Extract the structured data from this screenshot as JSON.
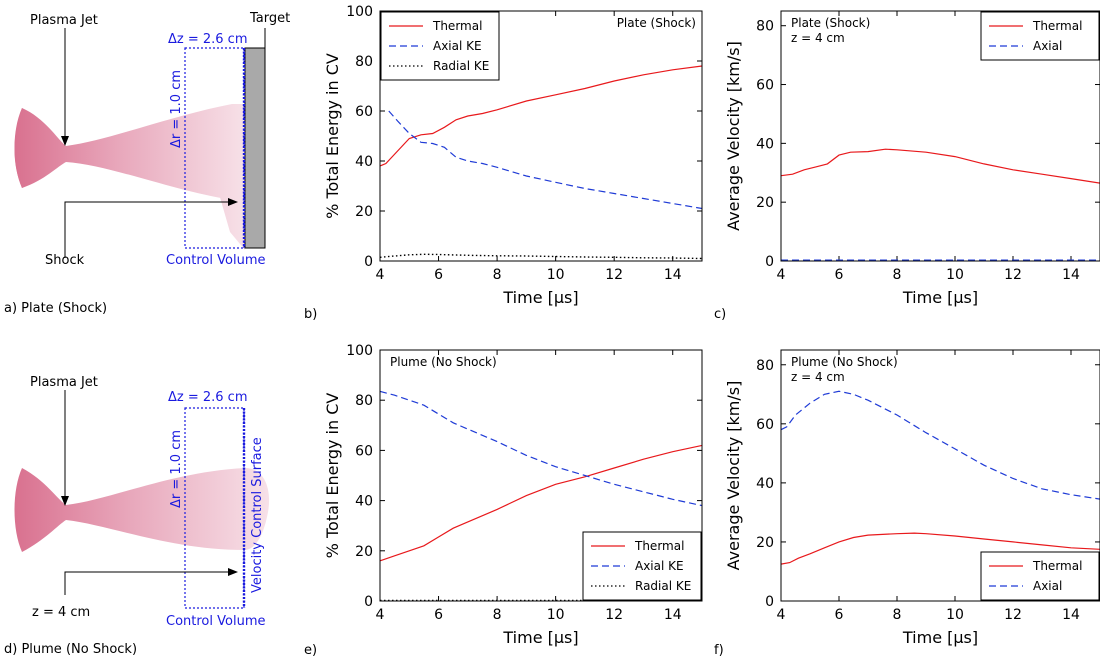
{
  "colors": {
    "thermal": "#e8191c",
    "axial": "#1f3bd6",
    "radial": "#000000",
    "plasma": "#d9718f",
    "cv": "#1a1adf",
    "target": "#a9a9a9"
  },
  "diagram_a": {
    "panel_label": "a) Plate (Shock)",
    "plasma_jet": "Plasma Jet",
    "dz": "Δz = 2.6 cm",
    "dr": "Δr = 1.0 cm",
    "target": "Target",
    "shock": "Shock",
    "control_volume": "Control Volume"
  },
  "diagram_d": {
    "panel_label": "d) Plume (No Shock)",
    "plasma_jet": "Plasma Jet",
    "dz": "Δz = 2.6 cm",
    "dr": "Δr = 1.0 cm",
    "surface": "Velocity Control Surface",
    "z_label": "z = 4 cm",
    "control_volume": "Control Volume"
  },
  "chart_data": [
    {
      "id": "b",
      "type": "line",
      "panel_label": "b)",
      "annotation": [
        "Plate (Shock)"
      ],
      "xlabel": "Time [μs]",
      "ylabel": "% Total Energy in CV",
      "xlim": [
        4,
        15
      ],
      "ylim": [
        0,
        100
      ],
      "xticks": [
        4,
        6,
        8,
        10,
        12,
        14
      ],
      "yticks": [
        0,
        20,
        40,
        60,
        80,
        100
      ],
      "legend_position": "top-left",
      "series": [
        {
          "name": "Thermal",
          "key": "thermal",
          "dash": "solid",
          "x": [
            4.0,
            4.2,
            4.6,
            5.0,
            5.4,
            5.8,
            6.2,
            6.6,
            7.0,
            7.5,
            8.0,
            9.0,
            10.0,
            11.0,
            12.0,
            13.0,
            14.0,
            15.0
          ],
          "y": [
            38,
            39,
            44,
            49,
            50.5,
            51,
            53.5,
            56.5,
            58,
            59,
            60.5,
            64,
            66.5,
            69,
            72,
            74.5,
            76.5,
            78
          ]
        },
        {
          "name": "Axial KE",
          "key": "axial",
          "dash": "dashed",
          "x": [
            4.3,
            4.6,
            5.0,
            5.4,
            5.8,
            6.2,
            6.6,
            7.0,
            7.5,
            8.0,
            9.0,
            10.0,
            11.0,
            12.0,
            13.0,
            14.0,
            15.0
          ],
          "y": [
            60,
            56,
            51,
            47.5,
            47,
            45.5,
            41.5,
            40,
            39,
            37.5,
            34,
            31.5,
            29,
            27,
            25,
            23,
            21
          ]
        },
        {
          "name": "Radial KE",
          "key": "radial",
          "dash": "dotted",
          "x": [
            4.0,
            4.5,
            5.0,
            5.5,
            6.0,
            7.0,
            8.0,
            9.0,
            10.0,
            11.0,
            12.0,
            13.0,
            14.0,
            15.0
          ],
          "y": [
            1.5,
            2,
            2.5,
            2.7,
            2.6,
            2.3,
            2.1,
            2.0,
            1.8,
            1.6,
            1.5,
            1.3,
            1.2,
            1.0
          ]
        }
      ]
    },
    {
      "id": "c",
      "type": "line",
      "panel_label": "c)",
      "annotation": [
        "Plate (Shock)",
        "z = 4 cm"
      ],
      "xlabel": "Time [μs]",
      "ylabel": "Average Velocity [km/s]",
      "xlim": [
        4,
        15
      ],
      "ylim": [
        0,
        85
      ],
      "xticks": [
        4,
        6,
        8,
        10,
        12,
        14
      ],
      "yticks": [
        0,
        20,
        40,
        60,
        80
      ],
      "legend_position": "top-right",
      "series": [
        {
          "name": "Thermal",
          "key": "thermal",
          "dash": "solid",
          "x": [
            4.0,
            4.4,
            4.8,
            5.2,
            5.6,
            6.0,
            6.4,
            7.0,
            7.6,
            8.0,
            9.0,
            10.0,
            11.0,
            12.0,
            13.0,
            14.0,
            15.0
          ],
          "y": [
            29,
            29.5,
            31,
            32,
            33,
            36,
            37,
            37.2,
            38,
            37.8,
            37,
            35.5,
            33,
            31,
            29.5,
            28,
            26.5
          ]
        },
        {
          "name": "Axial",
          "key": "axial",
          "dash": "dashed",
          "x": [
            4.0,
            6.0,
            8.0,
            10.0,
            12.0,
            14.0,
            15.0
          ],
          "y": [
            0.3,
            0.3,
            0.3,
            0.3,
            0.3,
            0.3,
            0.3
          ]
        }
      ]
    },
    {
      "id": "e",
      "type": "line",
      "panel_label": "e)",
      "annotation": [
        "Plume (No Shock)"
      ],
      "xlabel": "Time [μs]",
      "ylabel": "% Total Energy in CV",
      "xlim": [
        4,
        15
      ],
      "ylim": [
        0,
        100
      ],
      "xticks": [
        4,
        6,
        8,
        10,
        12,
        14
      ],
      "yticks": [
        0,
        20,
        40,
        60,
        80,
        100
      ],
      "legend_position": "bottom-right",
      "series": [
        {
          "name": "Thermal",
          "key": "thermal",
          "dash": "solid",
          "x": [
            4.0,
            4.5,
            5.0,
            5.5,
            6.0,
            6.5,
            7.0,
            8.0,
            9.0,
            10.0,
            11.0,
            12.0,
            13.0,
            14.0,
            15.0
          ],
          "y": [
            16,
            18,
            20,
            22,
            25.5,
            29,
            31.5,
            36.5,
            42,
            46.5,
            49.5,
            53,
            56.5,
            59.5,
            62
          ]
        },
        {
          "name": "Axial KE",
          "key": "axial",
          "dash": "dashed",
          "x": [
            4.0,
            4.5,
            5.0,
            5.5,
            6.0,
            6.5,
            7.0,
            8.0,
            9.0,
            10.0,
            11.0,
            12.0,
            13.0,
            14.0,
            15.0
          ],
          "y": [
            83.5,
            82,
            80,
            78,
            74.5,
            71,
            68.5,
            63.5,
            58,
            53.5,
            50,
            46.5,
            43.5,
            40.5,
            38
          ]
        },
        {
          "name": "Radial KE",
          "key": "radial",
          "dash": "dotted",
          "x": [
            4.0,
            6.0,
            8.0,
            10.0,
            12.0,
            14.0,
            15.0
          ],
          "y": [
            0.2,
            0.2,
            0.2,
            0.2,
            0.2,
            0.2,
            0.2
          ]
        }
      ]
    },
    {
      "id": "f",
      "type": "line",
      "panel_label": "f)",
      "annotation": [
        "Plume (No Shock)",
        "z = 4 cm"
      ],
      "xlabel": "Time [μs]",
      "ylabel": "Average Velocity [km/s]",
      "xlim": [
        4,
        15
      ],
      "ylim": [
        0,
        85
      ],
      "xticks": [
        4,
        6,
        8,
        10,
        12,
        14
      ],
      "yticks": [
        0,
        20,
        40,
        60,
        80
      ],
      "legend_position": "bottom-right",
      "series": [
        {
          "name": "Thermal",
          "key": "thermal",
          "dash": "solid",
          "x": [
            4.0,
            4.3,
            4.6,
            5.0,
            5.5,
            6.0,
            6.5,
            7.0,
            8.0,
            8.6,
            9.0,
            10.0,
            11.0,
            12.0,
            13.0,
            14.0,
            15.0
          ],
          "y": [
            12.5,
            13,
            14.5,
            16,
            18,
            20,
            21.5,
            22.3,
            22.8,
            23,
            22.8,
            22,
            21,
            20,
            19,
            18,
            17.5
          ]
        },
        {
          "name": "Axial",
          "key": "axial",
          "dash": "dashed",
          "x": [
            4.0,
            4.2,
            4.5,
            5.0,
            5.5,
            6.0,
            6.5,
            7.0,
            8.0,
            9.0,
            10.0,
            11.0,
            12.0,
            13.0,
            14.0,
            15.0
          ],
          "y": [
            58,
            59,
            63,
            67,
            70,
            71,
            70,
            68,
            63,
            57,
            51.5,
            46,
            41.5,
            38,
            36,
            34.5
          ]
        }
      ]
    }
  ]
}
